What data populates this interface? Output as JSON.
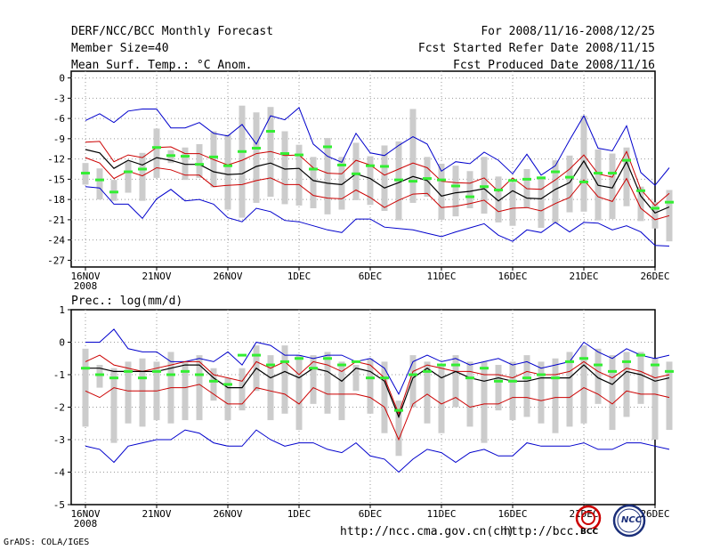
{
  "header": {
    "left": [
      "DERF/NCC/BCC Monthly Forecast",
      "Member Size=40",
      "Mean Surf. Temp.: °C Anom."
    ],
    "right": [
      "For 2008/11/16-2008/12/25",
      "Fcst Started Refer Date 2008/11/15",
      "Fcst Produced Date 2008/11/16"
    ]
  },
  "footer": {
    "grads": "GrADS: COLA/IGES",
    "url1": "http://ncc.cma.gov.cn(ch)",
    "url2": "http://bcc.c",
    "logo1": "BCC",
    "logo2": "NCC"
  },
  "colors": {
    "envelope": "#0000cc",
    "spread": "#cc0000",
    "mean": "#000000",
    "obs": "#33ee33",
    "box": "#cccccc"
  },
  "chart_data": [
    {
      "type": "line",
      "title": "Mean Surf. Temp.: °C Anom.",
      "x_tick_labels": [
        "16NOV",
        "21NOV",
        "26NOV",
        "1DEC",
        "6DEC",
        "11DEC",
        "16DEC",
        "21DEC",
        "26DEC"
      ],
      "x_year_label": "2008",
      "ylim": [
        -28,
        1
      ],
      "yticks": [
        0,
        -3,
        -6,
        -9,
        -12,
        -15,
        -18,
        -21,
        -24,
        -27
      ],
      "series": {
        "max": [
          -6.3,
          -5.3,
          -6.6,
          -4.9,
          -4.6,
          -4.6,
          -7.4,
          -7.4,
          -6.6,
          -8.2,
          -8.6,
          -6.9,
          -9.8,
          -5.6,
          -6.2,
          -4.4,
          -9.8,
          -11.6,
          -12.5,
          -8.2,
          -11.1,
          -11.5,
          -10,
          -8.7,
          -9.8,
          -13.8,
          -12.4,
          -12.7,
          -11,
          -12.2,
          -14.2,
          -11.3,
          -14.4,
          -13,
          -9.2,
          -5.6,
          -10.4,
          -10.8,
          -7.1,
          -14,
          -15.9,
          -13.3
        ],
        "min": [
          -16.1,
          -16.3,
          -18.7,
          -18.7,
          -20.8,
          -17.9,
          -16.5,
          -18.2,
          -18,
          -18.7,
          -20.7,
          -21.3,
          -19.3,
          -19.8,
          -21.1,
          -21.3,
          -21.9,
          -22.5,
          -22.9,
          -20.9,
          -20.9,
          -22.1,
          -22.3,
          -22.5,
          -23,
          -23.5,
          -22.8,
          -22.2,
          -21.6,
          -23.3,
          -24.2,
          -22.5,
          -22.9,
          -21.4,
          -22.8,
          -21.4,
          -21.5,
          -22.5,
          -21.9,
          -22.8,
          -24.8,
          -24.9
        ],
        "upper": [
          -9.5,
          -9.4,
          -12.4,
          -11.4,
          -11.8,
          -10.3,
          -10.2,
          -11.2,
          -11.2,
          -12.1,
          -12.9,
          -12.2,
          -11.2,
          -10.9,
          -11.5,
          -11.4,
          -13.3,
          -14.1,
          -14.2,
          -12.2,
          -12.9,
          -14.4,
          -13.5,
          -12.6,
          -13.3,
          -15.3,
          -15.5,
          -15.6,
          -14.8,
          -16.8,
          -14.8,
          -16.4,
          -16.5,
          -15.1,
          -13.5,
          -11.4,
          -14.2,
          -14.7,
          -10.9,
          -16.5,
          -18.9,
          -17.1
        ],
        "mean": [
          -10.6,
          -11.1,
          -13.4,
          -12.2,
          -12.9,
          -11.8,
          -12.2,
          -12.8,
          -12.8,
          -13.9,
          -14.3,
          -14.2,
          -13.1,
          -12.6,
          -13.5,
          -13.4,
          -15.2,
          -15.6,
          -15.8,
          -14.2,
          -14.9,
          -16.3,
          -15.5,
          -14.6,
          -15.2,
          -17.5,
          -17,
          -16.8,
          -16.4,
          -18.2,
          -16.7,
          -17.8,
          -17.9,
          -16.5,
          -15.5,
          -12.3,
          -15.9,
          -16.3,
          -12.4,
          -17.5,
          -20,
          -19.1
        ],
        "lower": [
          -11.8,
          -12.6,
          -14.9,
          -13.8,
          -14.5,
          -13.3,
          -13.6,
          -14.4,
          -14.4,
          -16.1,
          -15.9,
          -15.8,
          -15.2,
          -14.8,
          -15.8,
          -15.8,
          -17.4,
          -17.8,
          -17.9,
          -16.6,
          -17.7,
          -19.2,
          -18.1,
          -17.2,
          -17.1,
          -19.2,
          -19,
          -18.6,
          -18.1,
          -19.8,
          -19.3,
          -19.2,
          -19.7,
          -18.6,
          -17.7,
          -15.1,
          -17.6,
          -18.3,
          -14.9,
          -19.3,
          -21,
          -20.4
        ],
        "obs": [
          -14.1,
          -15.1,
          -16.9,
          -13.9,
          -13.5,
          -10.3,
          -11.5,
          -11.6,
          -12.8,
          -11.7,
          -13,
          -10.9,
          -10.4,
          -7.9,
          -11.2,
          -11.4,
          -13.5,
          -10.2,
          -12.9,
          -14.2,
          -13,
          -13.1,
          -15.1,
          -15.3,
          -14.9,
          -15.1,
          -16,
          -17.6,
          -16.1,
          -16.6,
          -15.2,
          -15,
          -14.8,
          -13.9,
          -14.7,
          -15.4,
          -14.1,
          -14.1,
          -12.2,
          -16.7,
          -19.3,
          -18.4
        ],
        "box_top": [
          -12.6,
          -13.4,
          -15.1,
          -12.3,
          -11.1,
          -7.5,
          -10.7,
          -10.3,
          -9.8,
          -7.9,
          -8.4,
          -4.1,
          -5.1,
          -4.3,
          -7.9,
          -9.9,
          -11.7,
          -8.9,
          -11.7,
          -9.6,
          -11.6,
          -10,
          -9.4,
          -4.6,
          -11.7,
          -12.7,
          -13,
          -13.8,
          -11.7,
          -14.6,
          -15.5,
          -13.5,
          -14.6,
          -12.2,
          -11.5,
          -5.6,
          -10.6,
          -11.2,
          -10.3,
          -16.1,
          -18.4,
          -16.6
        ],
        "box_bot": [
          -15.8,
          -18,
          -18.2,
          -17,
          -18.2,
          -14.8,
          -12.6,
          -15.1,
          -14.8,
          -16.2,
          -19.5,
          -20.7,
          -18.5,
          -17.6,
          -18.7,
          -18.9,
          -19.3,
          -20.2,
          -19.5,
          -18.1,
          -18.8,
          -19.7,
          -21.1,
          -18.5,
          -17.6,
          -21,
          -20.5,
          -19.3,
          -20.1,
          -21.4,
          -21.9,
          -19.3,
          -22.2,
          -21.5,
          -19.9,
          -19.8,
          -21.1,
          -20.9,
          -19,
          -21.2,
          -22.3,
          -24.2
        ]
      }
    },
    {
      "type": "line",
      "title": "Prec.: log(mm/d)",
      "x_tick_labels": [
        "16NOV",
        "21NOV",
        "26NOV",
        "1DEC",
        "6DEC",
        "11DEC",
        "16DEC",
        "21DEC",
        "26DEC"
      ],
      "x_year_label": "2008",
      "ylim": [
        -5,
        1
      ],
      "yticks": [
        1,
        0,
        -1,
        -2,
        -3,
        -4,
        -5
      ],
      "series": {
        "max": [
          0,
          0,
          0.4,
          -0.2,
          -0.3,
          -0.3,
          -0.6,
          -0.6,
          -0.5,
          -0.6,
          -0.3,
          -0.7,
          0,
          -0.1,
          -0.4,
          -0.4,
          -0.5,
          -0.4,
          -0.4,
          -0.6,
          -0.5,
          -0.8,
          -1.6,
          -0.6,
          -0.4,
          -0.6,
          -0.5,
          -0.7,
          -0.6,
          -0.5,
          -0.7,
          -0.6,
          -0.8,
          -0.7,
          -0.6,
          0,
          -0.3,
          -0.5,
          -0.2,
          -0.4,
          -0.5,
          -0.4
        ],
        "min": [
          -3.2,
          -3.3,
          -3.7,
          -3.2,
          -3.1,
          -3,
          -3,
          -2.7,
          -2.8,
          -3.1,
          -3.2,
          -3.2,
          -2.7,
          -3,
          -3.2,
          -3.1,
          -3.1,
          -3.3,
          -3.4,
          -3.1,
          -3.5,
          -3.6,
          -4,
          -3.6,
          -3.3,
          -3.4,
          -3.7,
          -3.4,
          -3.3,
          -3.5,
          -3.5,
          -3.1,
          -3.2,
          -3.2,
          -3.2,
          -3.1,
          -3.3,
          -3.3,
          -3.1,
          -3.1,
          -3.2,
          -3.3
        ],
        "upper": [
          -0.6,
          -0.4,
          -0.7,
          -0.8,
          -0.9,
          -0.8,
          -0.7,
          -0.6,
          -0.6,
          -1,
          -1.1,
          -1.2,
          -0.6,
          -0.8,
          -0.6,
          -1,
          -0.6,
          -0.7,
          -0.9,
          -0.6,
          -0.7,
          -1.1,
          -2.2,
          -0.9,
          -0.7,
          -0.8,
          -0.9,
          -0.9,
          -1,
          -1,
          -1.1,
          -0.9,
          -1,
          -1,
          -0.9,
          -0.6,
          -0.9,
          -1.1,
          -0.8,
          -0.9,
          -1.1,
          -1
        ],
        "mean": [
          -0.8,
          -0.8,
          -0.9,
          -0.9,
          -0.9,
          -0.9,
          -0.8,
          -0.7,
          -0.7,
          -1.1,
          -1.4,
          -1.4,
          -0.8,
          -1.1,
          -0.9,
          -1.1,
          -0.8,
          -0.9,
          -1.2,
          -0.8,
          -0.9,
          -1.2,
          -2.3,
          -1.1,
          -0.8,
          -1.1,
          -0.9,
          -1.1,
          -1.2,
          -1.1,
          -1.2,
          -1.2,
          -1.1,
          -1.1,
          -1.1,
          -0.7,
          -1.1,
          -1.3,
          -0.9,
          -1,
          -1.2,
          -1.1
        ],
        "lower": [
          -1.5,
          -1.7,
          -1.4,
          -1.5,
          -1.5,
          -1.5,
          -1.4,
          -1.4,
          -1.3,
          -1.6,
          -1.9,
          -1.9,
          -1.4,
          -1.5,
          -1.6,
          -1.9,
          -1.4,
          -1.6,
          -1.6,
          -1.6,
          -1.7,
          -2,
          -3,
          -1.9,
          -1.6,
          -1.9,
          -1.7,
          -2,
          -1.9,
          -1.9,
          -1.7,
          -1.7,
          -1.8,
          -1.7,
          -1.7,
          -1.4,
          -1.6,
          -1.9,
          -1.5,
          -1.6,
          -1.6,
          -1.7
        ],
        "obs": [
          -0.8,
          -1,
          -1.1,
          -0.9,
          -1.1,
          -0.9,
          -1,
          -0.9,
          -1,
          -1.2,
          -1.3,
          -0.4,
          -0.4,
          -0.7,
          -0.6,
          -0.5,
          -0.8,
          -0.5,
          -0.7,
          -0.6,
          -1.1,
          -1.1,
          -2.1,
          -1,
          -0.9,
          -0.7,
          -0.7,
          -1.1,
          -0.8,
          -1.2,
          -1.2,
          -1.1,
          -1,
          -1.1,
          -0.6,
          -0.5,
          -0.7,
          -0.9,
          -0.6,
          -0.4,
          -0.7,
          -0.9
        ],
        "box_top": [
          -0.2,
          -0.7,
          -0.8,
          -0.6,
          -0.5,
          -0.6,
          -0.3,
          -0.6,
          -0.4,
          -0.8,
          -1.1,
          -0.8,
          -0.1,
          -0.4,
          -0.1,
          -0.4,
          -0.4,
          -0.3,
          -0.6,
          -0.7,
          -0.5,
          -0.6,
          -1.8,
          -0.4,
          -0.6,
          -0.7,
          -0.4,
          -0.6,
          -0.6,
          -0.7,
          -0.6,
          -0.4,
          -0.6,
          -0.5,
          -0.3,
          -0.1,
          -0.2,
          -0.4,
          -0.3,
          -0.3,
          -0.5,
          -0.6
        ],
        "box_bot": [
          -2.6,
          -1.4,
          -3.1,
          -2.5,
          -2.6,
          -2.4,
          -2.5,
          -2.4,
          -2.4,
          -1.8,
          -2.4,
          -2.1,
          -1.5,
          -2.4,
          -2.2,
          -2.7,
          -1.9,
          -2.2,
          -2.4,
          -1.5,
          -2.2,
          -2.8,
          -3.5,
          -2,
          -2.5,
          -2.8,
          -2,
          -2.6,
          -3.1,
          -2.1,
          -2.4,
          -2.3,
          -2.5,
          -2.8,
          -2.6,
          -2.5,
          -1.9,
          -2.7,
          -2.3,
          -1.9,
          -3,
          -2.7
        ]
      }
    }
  ]
}
